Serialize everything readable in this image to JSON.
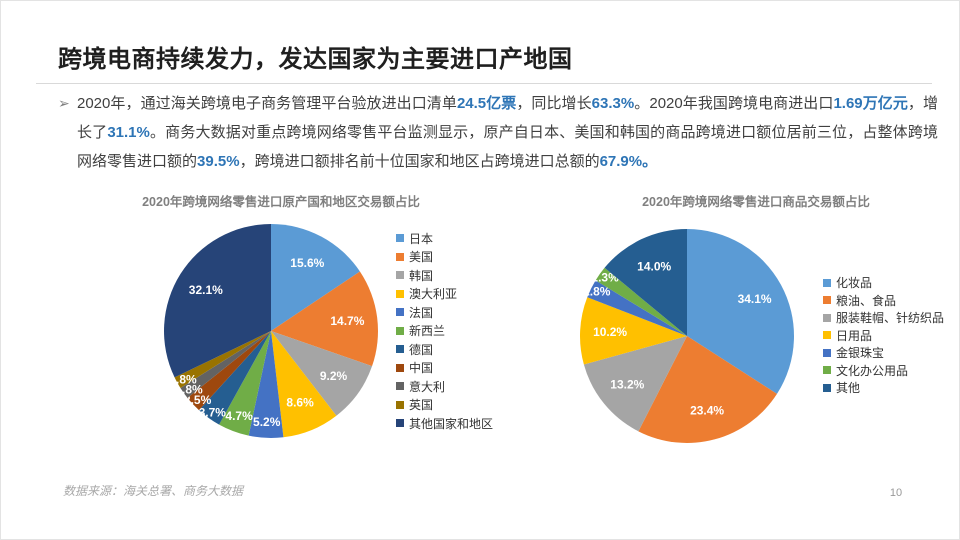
{
  "slide": {
    "title": "跨境电商持续发力，发达国家为主要进口产地国",
    "footer_source": "数据来源：海关总署、商务大数据",
    "page_number": "10",
    "bullet_glyph": "➢",
    "highlight_color": "#2e75b6"
  },
  "paragraph": {
    "segments": [
      {
        "t": "2020年，通过海关跨境电子商务管理平台验放进出口清单",
        "h": false
      },
      {
        "t": "24.5亿票",
        "h": true
      },
      {
        "t": "，同比增长",
        "h": false
      },
      {
        "t": "63.3%",
        "h": true
      },
      {
        "t": "。2020年我国跨境电商进出口",
        "h": false
      },
      {
        "t": "1.69万亿元",
        "h": true
      },
      {
        "t": "，增长了",
        "h": false
      },
      {
        "t": "31.1%",
        "h": true
      },
      {
        "t": "。商务大数据对重点跨境网络零售平台监测显示，原产自日本、美国和韩国的商品跨境进口额位居前三位，占整体跨境网络零售进口额的",
        "h": false
      },
      {
        "t": "39.5%",
        "h": true
      },
      {
        "t": "，跨境进口额排名前十位国家和地区占跨境进口总额的",
        "h": false
      },
      {
        "t": "67.9%。",
        "h": true
      }
    ]
  },
  "chart_data": [
    {
      "type": "pie",
      "title": "2020年跨境网络零售进口原产国和地区交易额占比",
      "categories": [
        "日本",
        "美国",
        "韩国",
        "澳大利亚",
        "法国",
        "新西兰",
        "德国",
        "中国",
        "意大利",
        "英国",
        "其他国家和地区"
      ],
      "values": [
        15.6,
        14.7,
        9.2,
        8.6,
        5.2,
        4.7,
        3.7,
        2.5,
        1.8,
        1.8,
        32.1
      ],
      "colors": [
        "#5B9BD5",
        "#ED7D31",
        "#A5A5A5",
        "#FFC000",
        "#4472C4",
        "#70AD47",
        "#255E91",
        "#9E480E",
        "#636363",
        "#997300",
        "#264478"
      ],
      "start_angle_deg": 0,
      "direction": "clockwise",
      "label_format": "percent_1dp",
      "label_color": "#ffffff",
      "legend_position": "right"
    },
    {
      "type": "pie",
      "title": "2020年跨境网络零售进口商品交易额占比",
      "categories": [
        "化妆品",
        "粮油、食品",
        "服装鞋帽、针纺织品",
        "日用品",
        "金银珠宝",
        "文化办公用品",
        "其他"
      ],
      "values": [
        34.1,
        23.4,
        13.2,
        10.2,
        2.8,
        2.3,
        14.0
      ],
      "colors": [
        "#5B9BD5",
        "#ED7D31",
        "#A5A5A5",
        "#FFC000",
        "#4472C4",
        "#70AD47",
        "#255E91"
      ],
      "start_angle_deg": 0,
      "direction": "clockwise",
      "label_format": "percent_1dp",
      "label_color": "#ffffff",
      "legend_position": "right"
    }
  ]
}
